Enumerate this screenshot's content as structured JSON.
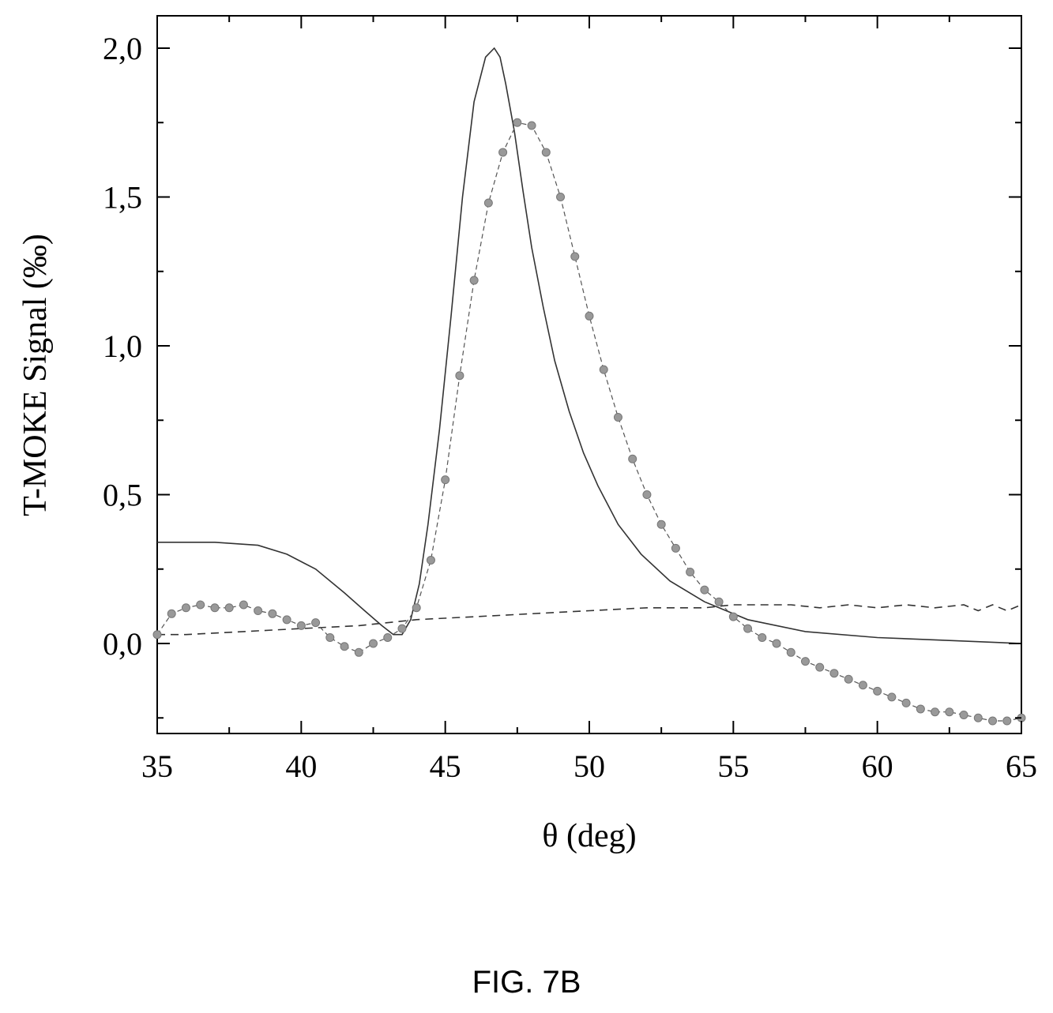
{
  "figure_caption": "FIG. 7B",
  "chart_data": {
    "type": "line",
    "title": "",
    "xlabel": "θ (deg)",
    "ylabel": "T-MOKE Signal  (‰)",
    "xlim": [
      35,
      65
    ],
    "ylim": [
      -0.3,
      2.1
    ],
    "x_ticks": [
      35,
      40,
      45,
      50,
      55,
      60,
      65
    ],
    "x_tick_labels": [
      "35",
      "40",
      "45",
      "50",
      "55",
      "60",
      "65"
    ],
    "y_ticks": [
      0,
      0.5,
      1,
      1.5,
      2
    ],
    "y_tick_labels": [
      "0,0",
      "0,5",
      "1,0",
      "1,5",
      "2,0"
    ],
    "grid": false,
    "legend": "none",
    "series": [
      {
        "style": "solid",
        "color": "#333333",
        "x": [
          35,
          37,
          38.5,
          39.5,
          40.5,
          41.5,
          42.2,
          42.8,
          43.2,
          43.5,
          43.8,
          44.1,
          44.4,
          44.8,
          45.2,
          45.6,
          46.0,
          46.4,
          46.7,
          46.9,
          47.1,
          47.4,
          47.7,
          48.0,
          48.4,
          48.8,
          49.3,
          49.8,
          50.3,
          51.0,
          51.8,
          52.8,
          54.0,
          55.5,
          57.5,
          60,
          62.5,
          65
        ],
        "y": [
          0.34,
          0.34,
          0.33,
          0.3,
          0.25,
          0.17,
          0.11,
          0.06,
          0.03,
          0.03,
          0.08,
          0.2,
          0.4,
          0.72,
          1.1,
          1.5,
          1.82,
          1.97,
          2.0,
          1.97,
          1.88,
          1.72,
          1.52,
          1.33,
          1.13,
          0.95,
          0.78,
          0.64,
          0.53,
          0.4,
          0.3,
          0.21,
          0.14,
          0.08,
          0.04,
          0.02,
          0.01,
          0.0
        ]
      },
      {
        "style": "dashed",
        "color": "#333333",
        "x": [
          35,
          36,
          38,
          40,
          42,
          44,
          46,
          48,
          50,
          52,
          54,
          55,
          56,
          57,
          58,
          59,
          60,
          61,
          62,
          63,
          63.5,
          64,
          64.5,
          65
        ],
        "y": [
          0.03,
          0.03,
          0.04,
          0.05,
          0.06,
          0.08,
          0.09,
          0.1,
          0.11,
          0.12,
          0.12,
          0.13,
          0.13,
          0.13,
          0.12,
          0.13,
          0.12,
          0.13,
          0.12,
          0.13,
          0.11,
          0.13,
          0.11,
          0.13
        ]
      },
      {
        "style": "markers",
        "color": "#999999",
        "x": [
          35.0,
          35.5,
          36.0,
          36.5,
          37.0,
          37.5,
          38.0,
          38.5,
          39.0,
          39.5,
          40.0,
          40.5,
          41.0,
          41.5,
          42.0,
          42.5,
          43.0,
          43.5,
          44.0,
          44.5,
          45.0,
          45.5,
          46.0,
          46.5,
          47.0,
          47.5,
          48.0,
          48.5,
          49.0,
          49.5,
          50.0,
          50.5,
          51.0,
          51.5,
          52.0,
          52.5,
          53.0,
          53.5,
          54.0,
          54.5,
          55.0,
          55.5,
          56.0,
          56.5,
          57.0,
          57.5,
          58.0,
          58.5,
          59.0,
          59.5,
          60.0,
          60.5,
          61.0,
          61.5,
          62.0,
          62.5,
          63.0,
          63.5,
          64.0,
          64.5,
          65.0
        ],
        "y": [
          0.03,
          0.1,
          0.12,
          0.13,
          0.12,
          0.12,
          0.13,
          0.11,
          0.1,
          0.08,
          0.06,
          0.07,
          0.02,
          -0.01,
          -0.03,
          0.0,
          0.02,
          0.05,
          0.12,
          0.28,
          0.55,
          0.9,
          1.22,
          1.48,
          1.65,
          1.75,
          1.74,
          1.65,
          1.5,
          1.3,
          1.1,
          0.92,
          0.76,
          0.62,
          0.5,
          0.4,
          0.32,
          0.24,
          0.18,
          0.14,
          0.09,
          0.05,
          0.02,
          0.0,
          -0.03,
          -0.06,
          -0.08,
          -0.1,
          -0.12,
          -0.14,
          -0.16,
          -0.18,
          -0.2,
          -0.22,
          -0.23,
          -0.23,
          -0.24,
          -0.25,
          -0.26,
          -0.26,
          -0.25
        ]
      }
    ]
  }
}
